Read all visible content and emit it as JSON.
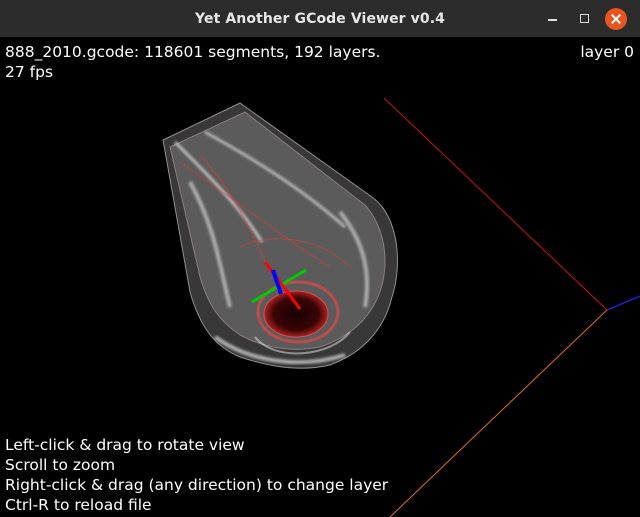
{
  "window": {
    "title": "Yet Another GCode Viewer v0.4",
    "controls": {
      "minimize_icon": "minimize-icon",
      "maximize_icon": "maximize-icon",
      "close_icon": "close-icon"
    }
  },
  "hud": {
    "file_info": "888_2010.gcode: 118601 segments, 192 layers.",
    "fps": "27 fps",
    "layer": "layer 0"
  },
  "help": [
    "Left-click & drag to rotate view",
    "Scroll to zoom",
    "Right-click & drag (any direction) to change layer",
    "Ctrl-R to reload file"
  ],
  "colors": {
    "titlebar": "#2c2c2c",
    "close_button": "#e95420",
    "axis_x": "#ff0000",
    "axis_y": "#00cc00",
    "axis_z": "#0000ff",
    "build_edge_red": "#cc1111",
    "build_edge_orange": "#e0701a",
    "build_edge_blue": "#1a2aff",
    "model_wire": "#ffffff",
    "model_perimeter": "#ff3030"
  }
}
